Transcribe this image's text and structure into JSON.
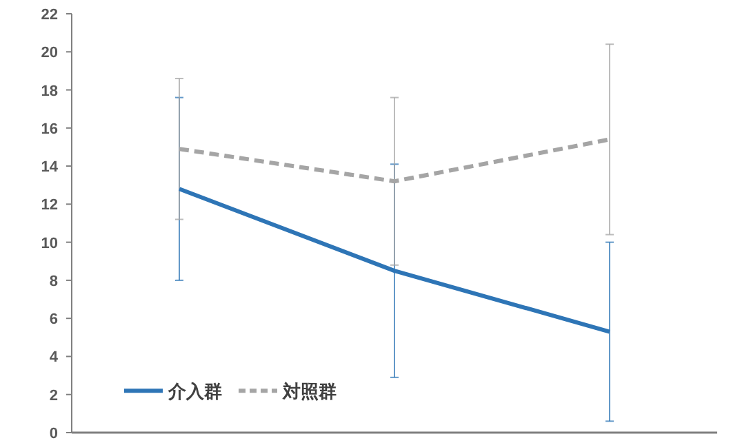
{
  "chart_data": {
    "type": "line",
    "categories": [
      null,
      null,
      null
    ],
    "series": [
      {
        "name": "介入群",
        "color": "#2e75b6",
        "values": [
          12.8,
          8.5,
          5.3
        ],
        "errors": [
          4.8,
          5.6,
          4.7
        ],
        "line_style": "solid"
      },
      {
        "name": "対照群",
        "color": "#a5a5a5",
        "values": [
          14.9,
          13.2,
          15.4
        ],
        "errors": [
          3.7,
          4.4,
          5.0
        ],
        "line_style": "dashed"
      }
    ],
    "ylim": [
      0,
      22
    ],
    "yticks": [
      0,
      2,
      4,
      6,
      8,
      10,
      12,
      14,
      16,
      18,
      20,
      22
    ],
    "grid": false,
    "legend": "bottom left",
    "marker": "none"
  }
}
